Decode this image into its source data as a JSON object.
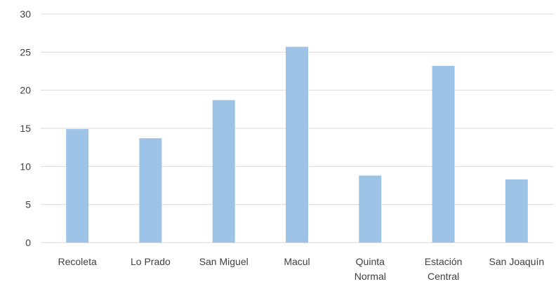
{
  "chart_data": {
    "type": "bar",
    "categories": [
      [
        "Recoleta"
      ],
      [
        "Lo Prado"
      ],
      [
        "San Miguel"
      ],
      [
        "Macul"
      ],
      [
        "Quinta",
        "Normal"
      ],
      [
        "Estación",
        "Central"
      ],
      [
        "San Joaquín"
      ]
    ],
    "values": [
      14.9,
      13.7,
      18.7,
      25.7,
      8.8,
      23.2,
      8.3
    ],
    "ylim": [
      0,
      30
    ],
    "yticks": [
      "0",
      "5",
      "10",
      "15",
      "20",
      "25",
      "30"
    ],
    "grid": true,
    "colors": {
      "bar": "#9DC3E6",
      "grid": "#d9d9d9",
      "text": "#404040"
    }
  }
}
